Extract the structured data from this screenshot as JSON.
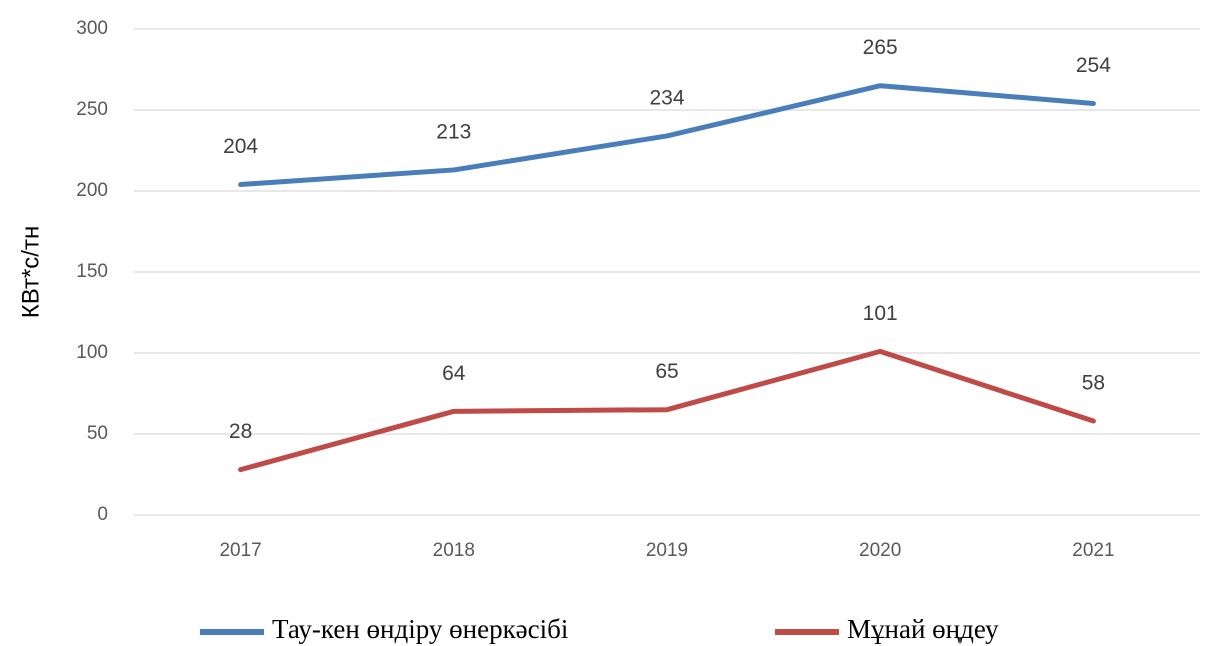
{
  "chart_data": {
    "type": "line",
    "y_label": "КВт*с/тн",
    "categories": [
      "2017",
      "2018",
      "2019",
      "2020",
      "2021"
    ],
    "series": [
      {
        "name": "Тау-кен өндіру өнеркәсібі",
        "color": "#4a7ebb",
        "values": [
          204,
          213,
          234,
          265,
          254
        ]
      },
      {
        "name": "Мұнай өңдеу",
        "color": "#be4b48",
        "values": [
          28,
          64,
          65,
          101,
          58
        ]
      }
    ],
    "ylim": [
      0,
      300
    ],
    "yticks": [
      0,
      50,
      100,
      150,
      200,
      250,
      300
    ],
    "grid": true,
    "legend": "bottom"
  }
}
